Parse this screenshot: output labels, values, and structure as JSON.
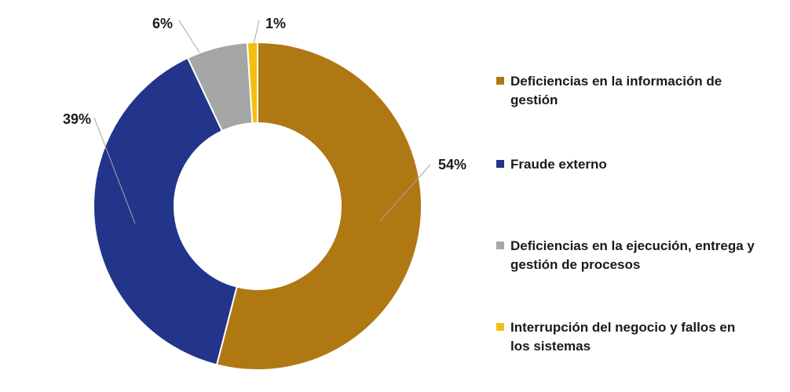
{
  "chart_data": {
    "type": "pie",
    "variant": "donut",
    "legend_position": "right",
    "slices": [
      {
        "label": "Deficiencias en la información de gestión",
        "value": 54,
        "display": "54%",
        "color": "#B07812"
      },
      {
        "label": "Fraude externo",
        "value": 39,
        "display": "39%",
        "color": "#22358A"
      },
      {
        "label": "Deficiencias en la ejecución, entrega y gestión de procesos",
        "value": 6,
        "display": "6%",
        "color": "#A6A6A6"
      },
      {
        "label": "Interrupción del negocio y fallos en los sistemas",
        "value": 1,
        "display": "1%",
        "color": "#F5BF0F"
      }
    ]
  }
}
